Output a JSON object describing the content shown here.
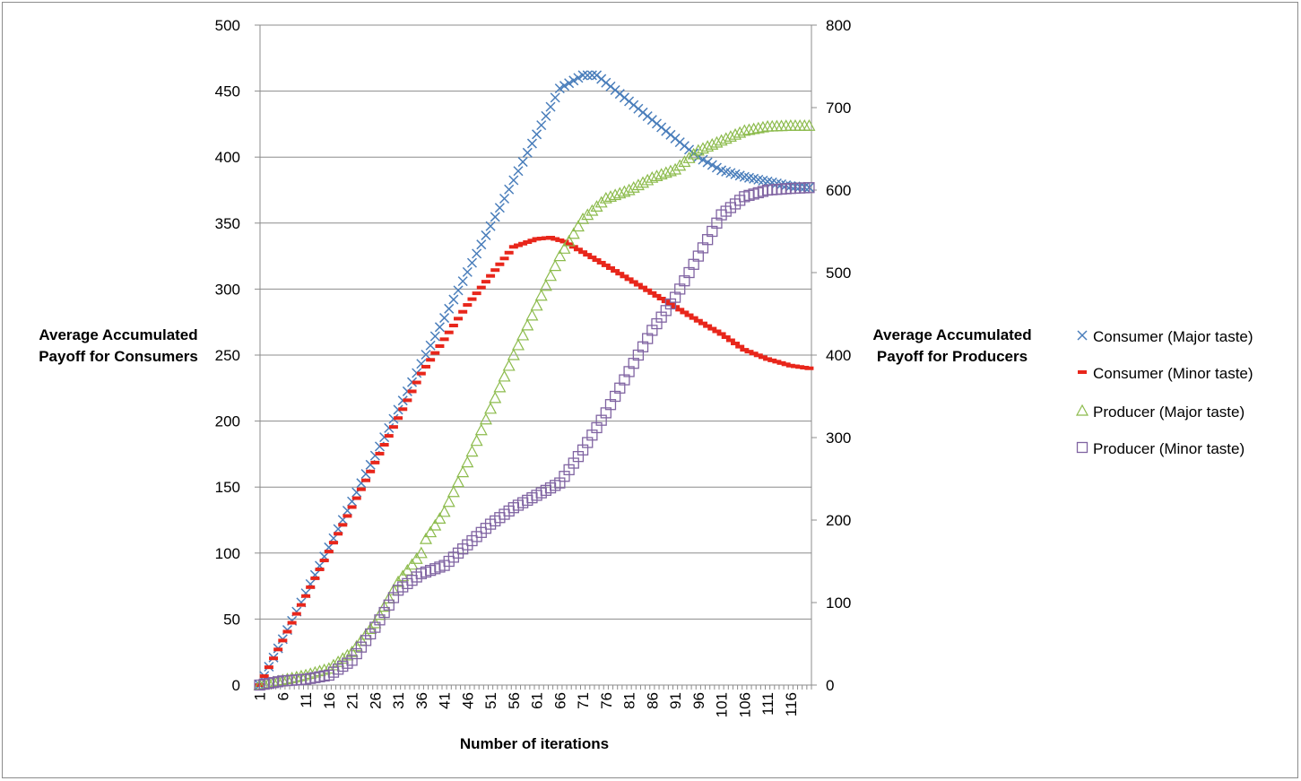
{
  "chart_data": {
    "type": "line",
    "xlabel": "Number of iterations",
    "ylabel_left": "Average Accumulated Payoff for Consumers",
    "ylabel_left_lines": [
      "Average Accumulated",
      "Payoff for Consumers"
    ],
    "ylabel_right": "Average Accumulated Payoff for Producers",
    "ylabel_right_lines": [
      "Average Accumulated",
      "Payoff for Producers"
    ],
    "ylim_left": [
      0,
      500
    ],
    "ylim_right": [
      0,
      800
    ],
    "yticks_left": [
      0,
      50,
      100,
      150,
      200,
      250,
      300,
      350,
      400,
      450,
      500
    ],
    "yticks_right": [
      0,
      100,
      200,
      300,
      400,
      500,
      600,
      700,
      800
    ],
    "xlim": [
      1,
      120
    ],
    "xticks": [
      1,
      6,
      11,
      16,
      21,
      26,
      31,
      36,
      41,
      46,
      51,
      56,
      61,
      66,
      71,
      76,
      81,
      86,
      91,
      96,
      101,
      106,
      111,
      116
    ],
    "grid": "horizontal",
    "legend_position": "right",
    "series": [
      {
        "name": "Consumer (Major taste)",
        "axis": "left",
        "marker": "x",
        "color": "#4a7ebb",
        "keypoints": [
          [
            1,
            0
          ],
          [
            66,
            452
          ],
          [
            71,
            462
          ],
          [
            74,
            462
          ],
          [
            96,
            400
          ],
          [
            101,
            390
          ],
          [
            106,
            385
          ],
          [
            116,
            378
          ],
          [
            120,
            377
          ]
        ]
      },
      {
        "name": "Consumer (Minor taste)",
        "axis": "left",
        "marker": "dash",
        "color": "#e8261b",
        "keypoints": [
          [
            1,
            0
          ],
          [
            36,
            236
          ],
          [
            46,
            288
          ],
          [
            56,
            332
          ],
          [
            61,
            338
          ],
          [
            64,
            339
          ],
          [
            67,
            336
          ],
          [
            76,
            318
          ],
          [
            86,
            297
          ],
          [
            96,
            276
          ],
          [
            101,
            266
          ],
          [
            106,
            254
          ],
          [
            111,
            247
          ],
          [
            116,
            242
          ],
          [
            120,
            240
          ]
        ]
      },
      {
        "name": "Producer (Major taste)",
        "axis": "right",
        "marker": "triangle",
        "color": "#8cbb4c",
        "keypoints": [
          [
            1,
            0
          ],
          [
            11,
            12
          ],
          [
            16,
            20
          ],
          [
            21,
            40
          ],
          [
            26,
            75
          ],
          [
            31,
            125
          ],
          [
            36,
            160
          ],
          [
            37,
            177
          ],
          [
            41,
            210
          ],
          [
            46,
            270
          ],
          [
            51,
            335
          ],
          [
            56,
            400
          ],
          [
            61,
            460
          ],
          [
            66,
            520
          ],
          [
            71,
            565
          ],
          [
            76,
            590
          ],
          [
            81,
            600
          ],
          [
            86,
            615
          ],
          [
            91,
            625
          ],
          [
            96,
            648
          ],
          [
            101,
            660
          ],
          [
            106,
            672
          ],
          [
            111,
            677
          ],
          [
            116,
            678
          ],
          [
            120,
            678
          ]
        ]
      },
      {
        "name": "Producer (Minor taste)",
        "axis": "right",
        "marker": "square",
        "color": "#8064a2",
        "keypoints": [
          [
            1,
            0
          ],
          [
            6,
            5
          ],
          [
            11,
            7
          ],
          [
            16,
            12
          ],
          [
            21,
            30
          ],
          [
            26,
            70
          ],
          [
            31,
            115
          ],
          [
            36,
            135
          ],
          [
            41,
            145
          ],
          [
            46,
            170
          ],
          [
            51,
            195
          ],
          [
            56,
            215
          ],
          [
            61,
            230
          ],
          [
            66,
            245
          ],
          [
            71,
            285
          ],
          [
            76,
            330
          ],
          [
            81,
            380
          ],
          [
            86,
            430
          ],
          [
            91,
            470
          ],
          [
            96,
            520
          ],
          [
            101,
            570
          ],
          [
            106,
            592
          ],
          [
            111,
            600
          ],
          [
            116,
            602
          ],
          [
            120,
            603
          ]
        ]
      }
    ]
  }
}
